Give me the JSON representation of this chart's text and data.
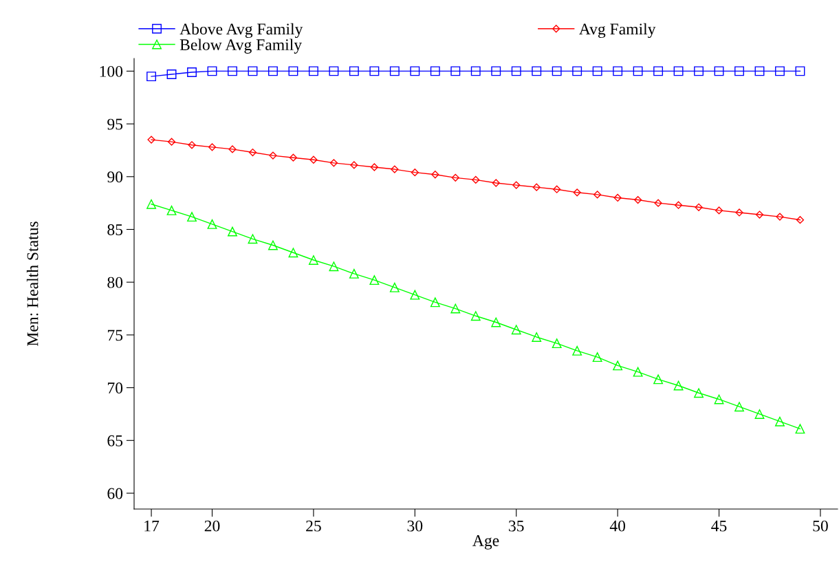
{
  "chart_data": {
    "type": "line",
    "xlabel": "Age",
    "ylabel": "Men: Health Status",
    "x": [
      17,
      18,
      19,
      20,
      21,
      22,
      23,
      24,
      25,
      26,
      27,
      28,
      29,
      30,
      31,
      32,
      33,
      34,
      35,
      36,
      37,
      38,
      39,
      40,
      41,
      42,
      43,
      44,
      45,
      46,
      47,
      48,
      49
    ],
    "series": [
      {
        "name": "Above Avg Family",
        "color": "#0000ff",
        "marker": "square",
        "values": [
          99.5,
          99.7,
          99.9,
          100,
          100,
          100,
          100,
          100,
          100,
          100,
          100,
          100,
          100,
          100,
          100,
          100,
          100,
          100,
          100,
          100,
          100,
          100,
          100,
          100,
          100,
          100,
          100,
          100,
          100,
          100,
          100,
          100,
          100
        ]
      },
      {
        "name": "Avg Family",
        "color": "#ff0000",
        "marker": "diamond",
        "values": [
          93.5,
          93.3,
          93.0,
          92.8,
          92.6,
          92.3,
          92.0,
          91.8,
          91.6,
          91.3,
          91.1,
          90.9,
          90.7,
          90.4,
          90.2,
          89.9,
          89.7,
          89.4,
          89.2,
          89.0,
          88.8,
          88.5,
          88.3,
          88.0,
          87.8,
          87.5,
          87.3,
          87.1,
          86.8,
          86.6,
          86.4,
          86.2,
          85.9
        ]
      },
      {
        "name": "Below Avg Family",
        "color": "#00ff00",
        "marker": "triangle",
        "values": [
          87.4,
          86.8,
          86.2,
          85.5,
          84.8,
          84.1,
          83.5,
          82.8,
          82.1,
          81.5,
          80.8,
          80.2,
          79.5,
          78.8,
          78.1,
          77.5,
          76.8,
          76.2,
          75.5,
          74.8,
          74.2,
          73.5,
          72.9,
          72.1,
          71.5,
          70.8,
          70.2,
          69.5,
          68.9,
          68.2,
          67.5,
          66.8,
          66.1
        ]
      }
    ],
    "xlim": [
      16.15,
      50.85
    ],
    "xticks": [
      17,
      20,
      25,
      30,
      35,
      40,
      45,
      50
    ],
    "ylim": [
      58.5,
      101.2
    ],
    "yticks": [
      60,
      65,
      70,
      75,
      80,
      85,
      90,
      95,
      100
    ],
    "grid": false,
    "legend": "top",
    "line_style": "solid"
  }
}
